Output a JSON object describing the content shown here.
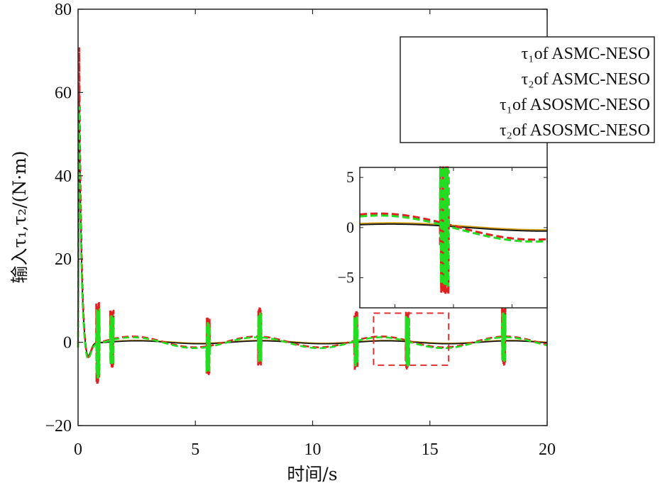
{
  "chart_data": {
    "type": "line",
    "xlabel": "时间/s",
    "ylabel": "输入τ₁,τ₂/(N·m)",
    "xlim": [
      0,
      20
    ],
    "ylim": [
      -20,
      80
    ],
    "xticks": [
      "0",
      "5",
      "10",
      "15",
      "20"
    ],
    "yticks": [
      "-20",
      "0",
      "20",
      "40",
      "60",
      "80"
    ],
    "grid": false,
    "legend_placement": "top-right",
    "series": [
      {
        "name": "τ₁of ASMC-NESO",
        "color": "#1a1a1a",
        "style": "solid",
        "description_values": {
          "peak": 62,
          "steady_amplitude": 0.5
        }
      },
      {
        "name": "τ₂of ASMC-NESO",
        "color": "#d4a017",
        "style": "solid",
        "description_values": {
          "peak": 60,
          "steady_amplitude": 0.5
        }
      },
      {
        "name": "τ₁of ASOSMC-NESO",
        "color": "#e02020",
        "style": "dashed",
        "description_values": {
          "peak": 72,
          "steady_amplitude": 1.8
        }
      },
      {
        "name": "τ₂of ASOSMC-NESO",
        "color": "#22dd22",
        "style": "dashed",
        "description_values": {
          "peak": 58,
          "steady_amplitude": 1.8
        }
      }
    ],
    "spike_times": [
      0.8,
      1.4,
      5.5,
      7.7,
      11.8,
      14.0,
      18.1
    ],
    "zoom_region": {
      "xlim": [
        12.6,
        15.8
      ],
      "ylim": [
        -5.5,
        7
      ]
    },
    "inset": {
      "xlim": [
        12.6,
        15.8
      ],
      "ylim": [
        -8,
        6
      ],
      "yticks": [
        "5",
        "0",
        "-5"
      ]
    }
  }
}
